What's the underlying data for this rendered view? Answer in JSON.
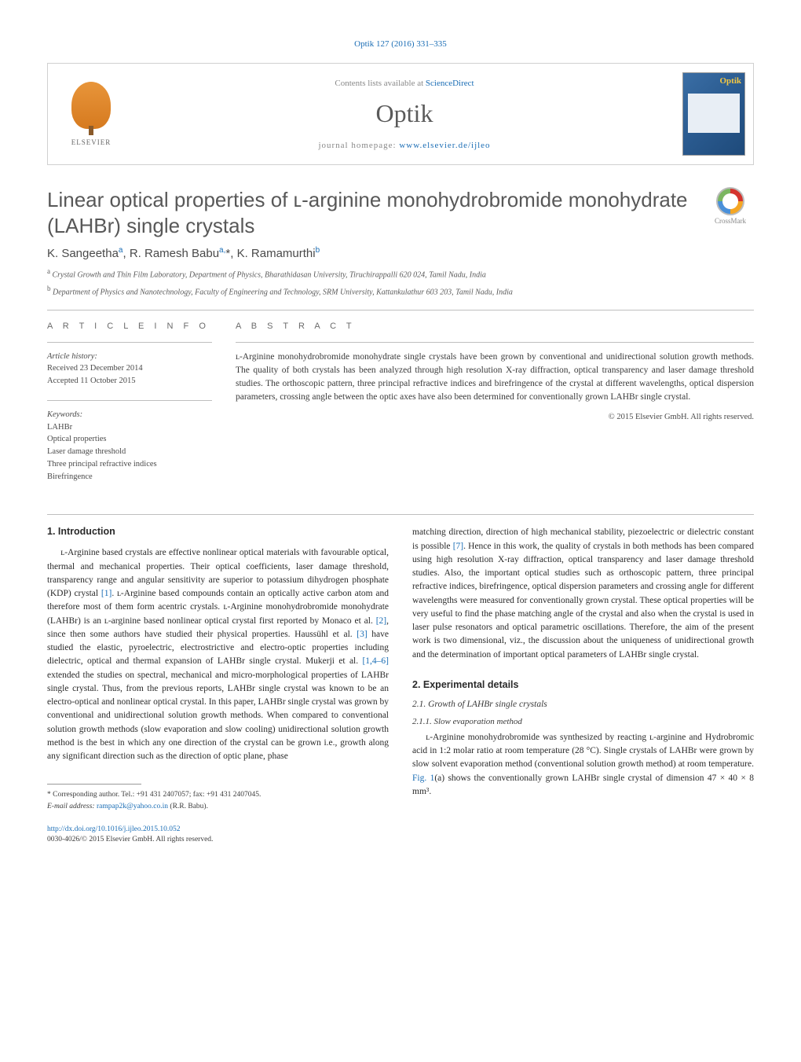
{
  "citation": "Optik 127 (2016) 331–335",
  "contents_box": {
    "contents_line_prefix": "Contents lists available at ",
    "contents_link": "ScienceDirect",
    "journal_title": "Optik",
    "homepage_prefix": "journal homepage: ",
    "homepage_link": "www.elsevier.de/ijleo",
    "elsevier_label": "ELSEVIER"
  },
  "crossmark_label": "CrossMark",
  "title": "Linear optical properties of ʟ-arginine monohydrobromide monohydrate (LAHBr) single crystals",
  "authors_html": "K. Sangeetha<sup>a</sup>, R. Ramesh Babu<sup>a,</sup>*, K. Ramamurthi<sup>b</sup>",
  "affiliations": {
    "a": "Crystal Growth and Thin Film Laboratory, Department of Physics, Bharathidasan University, Tiruchirappalli 620 024, Tamil Nadu, India",
    "b": "Department of Physics and Nanotechnology, Faculty of Engineering and Technology, SRM University, Kattankulathur 603 203, Tamil Nadu, India"
  },
  "article_info": {
    "heading": "A R T I C L E   I N F O",
    "history_label": "Article history:",
    "received": "Received 23 December 2014",
    "accepted": "Accepted 11 October 2015",
    "keywords_label": "Keywords:",
    "keywords": [
      "LAHBr",
      "Optical properties",
      "Laser damage threshold",
      "Three principal refractive indices",
      "Birefringence"
    ]
  },
  "abstract": {
    "heading": "A B S T R A C T",
    "text": "ʟ-Arginine monohydrobromide monohydrate single crystals have been grown by conventional and unidirectional solution growth methods. The quality of both crystals has been analyzed through high resolution X-ray diffraction, optical transparency and laser damage threshold studies. The orthoscopic pattern, three principal refractive indices and birefringence of the crystal at different wavelengths, optical dispersion parameters, crossing angle between the optic axes have also been determined for conventionally grown LAHBr single crystal.",
    "copyright": "© 2015 Elsevier GmbH. All rights reserved."
  },
  "sections": {
    "intro_heading": "1.  Introduction",
    "intro_p1_pre": "ʟ-Arginine based crystals are effective nonlinear optical materials with favourable optical, thermal and mechanical properties. Their optical coefficients, laser damage threshold, transparency range and angular sensitivity are superior to potassium dihydrogen phosphate (KDP) crystal ",
    "intro_ref1": "[1]",
    "intro_p1_mid1": ". ʟ-Arginine based compounds contain an optically active carbon atom and therefore most of them form acentric crystals. ʟ-Arginine monohydrobromide monohydrate (LAHBr) is an ʟ-arginine based nonlinear optical crystal first reported by Monaco et al. ",
    "intro_ref2": "[2]",
    "intro_p1_mid2": ", since then some authors have studied their physical properties. Haussühl et al. ",
    "intro_ref3": "[3]",
    "intro_p1_mid3": " have studied the elastic, pyroelectric, electrostrictive and electro-optic properties including dielectric, optical and thermal expansion of LAHBr single crystal. Mukerji et al. ",
    "intro_ref4": "[1,4–6]",
    "intro_p1_end": " extended the studies on spectral, mechanical and micro-morphological properties of LAHBr single crystal. Thus, from the previous reports, LAHBr single crystal was known to be an electro-optical and nonlinear optical crystal. In this paper, LAHBr single crystal was grown by conventional and unidirectional solution growth methods. When compared to conventional solution growth methods (slow evaporation and slow cooling) unidirectional solution growth method is the best in which any one direction of the crystal can be grown i.e., growth along any significant direction such as the direction of optic plane, phase",
    "col2_p1_pre": "matching direction, direction of high mechanical stability, piezoelectric or dielectric constant is possible ",
    "col2_ref7": "[7]",
    "col2_p1_end": ". Hence in this work, the quality of crystals in both methods has been compared using high resolution X-ray diffraction, optical transparency and laser damage threshold studies. Also, the important optical studies such as orthoscopic pattern, three principal refractive indices, birefringence, optical dispersion parameters and crossing angle for different wavelengths were measured for conventionally grown crystal. These optical properties will be very useful to find the phase matching angle of the crystal and also when the crystal is used in laser pulse resonators and optical parametric oscillations. Therefore, the aim of the present work is two dimensional, viz., the discussion about the uniqueness of unidirectional growth and the determination of important optical parameters of LAHBr single crystal.",
    "exp_heading": "2.  Experimental details",
    "exp_sub1": "2.1.  Growth of LAHBr single crystals",
    "exp_sub11": "2.1.1.  Slow evaporation method",
    "exp_p1_pre": "ʟ-Arginine monohydrobromide was synthesized by reacting ʟ-arginine and Hydrobromic acid in 1:2 molar ratio at room temperature (28 °C). Single crystals of LAHBr were grown by slow solvent evaporation method (conventional solution growth method) at room temperature. ",
    "exp_fig1": "Fig. 1",
    "exp_p1_end": "(a) shows the conventionally grown LAHBr single crystal of dimension 47 × 40 × 8 mm³."
  },
  "footnote": {
    "corr_label": "* Corresponding author. ",
    "corr_text": "Tel.: +91 431 2407057; fax: +91 431 2407045.",
    "email_label": "E-mail address: ",
    "email": "rampap2k@yahoo.co.in",
    "email_suffix": " (R.R. Babu)."
  },
  "doi": {
    "link": "http://dx.doi.org/10.1016/j.ijleo.2015.10.052",
    "issn_line": "0030-4026/© 2015 Elsevier GmbH. All rights reserved."
  },
  "colors": {
    "link": "#1a6db5",
    "text": "#2a2a2a",
    "text_muted": "#5a5a5a",
    "border": "#bfbfbf"
  }
}
